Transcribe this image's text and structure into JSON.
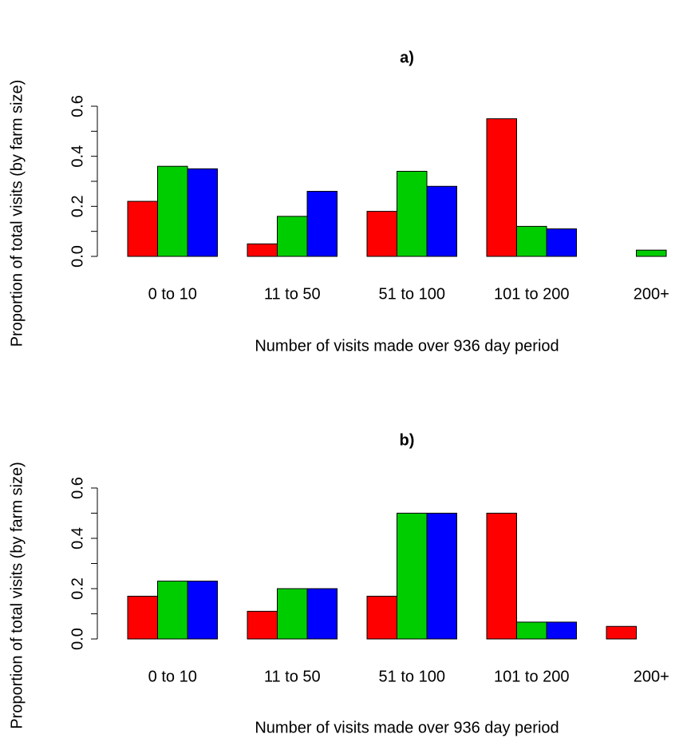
{
  "chart_data": [
    {
      "type": "bar",
      "title": "a)",
      "x_label": "Number of visits made over 936 day period",
      "y_label": "Proportion of total visits (by farm size)",
      "categories": [
        "0 to 10",
        "11 to 50",
        "51 to 100",
        "101 to 200",
        "200+"
      ],
      "series": [
        {
          "color": "#ff0000",
          "values": [
            0.22,
            0.05,
            0.18,
            0.55,
            0
          ]
        },
        {
          "color": "#00cd00",
          "values": [
            0.36,
            0.16,
            0.34,
            0.12,
            0.025
          ]
        },
        {
          "color": "#0000ff",
          "values": [
            0.35,
            0.26,
            0.28,
            0.11,
            0
          ]
        }
      ],
      "ylim": [
        0,
        0.6
      ],
      "yticks": [
        {
          "value": 0,
          "label": "0.0"
        },
        {
          "value": 0.2,
          "label": "0.2"
        },
        {
          "value": 0.4,
          "label": "0.4"
        },
        {
          "value": 0.6,
          "label": "0.6"
        }
      ],
      "minor_yticks": [
        0.1,
        0.3,
        0.5
      ]
    },
    {
      "type": "bar",
      "title": "b)",
      "x_label": "Number of visits made over 936 day period",
      "y_label": "Proportion of total visits (by farm size)",
      "categories": [
        "0 to 10",
        "11 to 50",
        "51 to 100",
        "101 to 200",
        "200+"
      ],
      "series": [
        {
          "color": "#ff0000",
          "values": [
            0.17,
            0.11,
            0.17,
            0.5,
            0.05
          ]
        },
        {
          "color": "#00cd00",
          "values": [
            0.23,
            0.2,
            0.5,
            0.067,
            0
          ]
        },
        {
          "color": "#0000ff",
          "values": [
            0.23,
            0.2,
            0.5,
            0.067,
            0
          ]
        }
      ],
      "ylim": [
        0,
        0.6
      ],
      "yticks": [
        {
          "value": 0,
          "label": "0.0"
        },
        {
          "value": 0.2,
          "label": "0.2"
        },
        {
          "value": 0.4,
          "label": "0.4"
        },
        {
          "value": 0.6,
          "label": "0.6"
        }
      ],
      "minor_yticks": [
        0.1,
        0.3,
        0.5
      ]
    }
  ]
}
